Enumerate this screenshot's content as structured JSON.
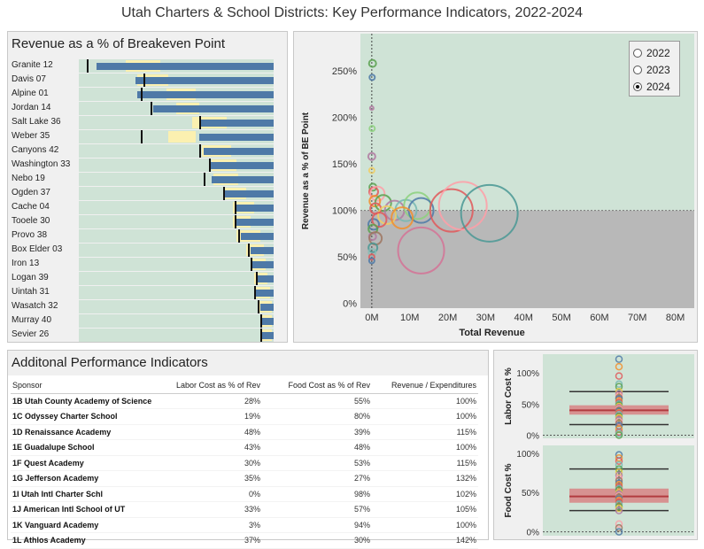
{
  "title": "Utah Charters & School Districts: Key Performance Indicators, 2022-2024",
  "revenue_panel": {
    "title": "Revenue as a % of Breakeven Point",
    "rows": [
      {
        "label": "Granite 12",
        "light_start": 0.24,
        "light_end": 0.42,
        "blue_start": 0.09,
        "blue_end": 1.0,
        "target": 0.04
      },
      {
        "label": "Davis 07",
        "light_start": 0.3,
        "light_end": 0.46,
        "blue_start": 0.29,
        "blue_end": 1.0,
        "target": 0.33
      },
      {
        "label": "Alpine 01",
        "light_start": 0.45,
        "light_end": 0.6,
        "blue_start": 0.3,
        "blue_end": 1.0,
        "target": 0.32
      },
      {
        "label": "Jordan 14",
        "light_start": 0.5,
        "light_end": 0.62,
        "blue_start": 0.38,
        "blue_end": 1.0,
        "target": 0.37
      },
      {
        "label": "Salt Lake 36",
        "light_start": 0.58,
        "light_end": 0.76,
        "blue_start": 0.62,
        "blue_end": 1.0,
        "target": 0.62
      },
      {
        "label": "Weber 35",
        "light_start": 0.46,
        "light_end": 0.6,
        "blue_start": 0.62,
        "blue_end": 1.0,
        "target": 0.32
      },
      {
        "label": "Canyons 42",
        "light_start": 0.63,
        "light_end": 0.78,
        "blue_start": 0.64,
        "blue_end": 1.0,
        "target": 0.62
      },
      {
        "label": "Washington 33",
        "light_start": 0.68,
        "light_end": 0.81,
        "blue_start": 0.67,
        "blue_end": 1.0,
        "target": 0.67
      },
      {
        "label": "Nebo 19",
        "light_start": 0.69,
        "light_end": 0.82,
        "blue_start": 0.68,
        "blue_end": 1.0,
        "target": 0.64
      },
      {
        "label": "Ogden 37",
        "light_start": 0.74,
        "light_end": 0.86,
        "blue_start": 0.74,
        "blue_end": 1.0,
        "target": 0.74
      },
      {
        "label": "Cache 04",
        "light_start": 0.79,
        "light_end": 0.9,
        "blue_start": 0.8,
        "blue_end": 1.0,
        "target": 0.8
      },
      {
        "label": "Tooele 30",
        "light_start": 0.79,
        "light_end": 0.88,
        "blue_start": 0.81,
        "blue_end": 1.0,
        "target": 0.8
      },
      {
        "label": "Provo 38",
        "light_start": 0.81,
        "light_end": 0.93,
        "blue_start": 0.83,
        "blue_end": 1.0,
        "target": 0.82
      },
      {
        "label": "Box Elder 03",
        "light_start": 0.86,
        "light_end": 0.95,
        "blue_start": 0.88,
        "blue_end": 1.0,
        "target": 0.87
      },
      {
        "label": "Iron 13",
        "light_start": 0.88,
        "light_end": 0.96,
        "blue_start": 0.89,
        "blue_end": 1.0,
        "target": 0.88
      },
      {
        "label": "Logan 39",
        "light_start": 0.9,
        "light_end": 0.97,
        "blue_start": 0.91,
        "blue_end": 1.0,
        "target": 0.91
      },
      {
        "label": "Uintah 31",
        "light_start": 0.9,
        "light_end": 0.98,
        "blue_start": 0.9,
        "blue_end": 1.0,
        "target": 0.9
      },
      {
        "label": "Wasatch 32",
        "light_start": 0.92,
        "light_end": 0.99,
        "blue_start": 0.93,
        "blue_end": 1.0,
        "target": 0.92
      },
      {
        "label": "Murray 40",
        "light_start": 0.93,
        "light_end": 0.99,
        "blue_start": 0.93,
        "blue_end": 1.0,
        "target": 0.93
      },
      {
        "label": "Sevier 26",
        "light_start": 0.93,
        "light_end": 0.99,
        "blue_start": 0.94,
        "blue_end": 1.0,
        "target": 0.93
      }
    ]
  },
  "legend": {
    "options": [
      {
        "label": "2022",
        "selected": false
      },
      {
        "label": "2023",
        "selected": false
      },
      {
        "label": "2024",
        "selected": true
      }
    ]
  },
  "chart_data": [
    {
      "type": "scatter",
      "xlabel": "Total Revenue",
      "ylabel": "Revenue as a % of BE Point",
      "xticks": [
        "0M",
        "10M",
        "20M",
        "30M",
        "40M",
        "50M",
        "60M",
        "70M",
        "80M"
      ],
      "yticks": [
        "0%",
        "50%",
        "100%",
        "150%",
        "200%",
        "250%"
      ],
      "xlim": [
        -3,
        85
      ],
      "ylim": [
        -5,
        290
      ],
      "reference_y": 100,
      "points": [
        {
          "x": 0.2,
          "y": 258,
          "size": 4,
          "color": "#59a14f"
        },
        {
          "x": 0.1,
          "y": 243,
          "size": 3,
          "color": "#4e79a7"
        },
        {
          "x": 0,
          "y": 210,
          "size": 2,
          "color": "#b07aa1"
        },
        {
          "x": 0.1,
          "y": 188,
          "size": 3,
          "color": "#8cd17d"
        },
        {
          "x": 0,
          "y": 158,
          "size": 4,
          "color": "#b07aa1"
        },
        {
          "x": 0,
          "y": 143,
          "size": 3,
          "color": "#f1ce63"
        },
        {
          "x": 0.3,
          "y": 125,
          "size": 4,
          "color": "#59a14f"
        },
        {
          "x": 0.5,
          "y": 120,
          "size": 5,
          "color": "#e15759"
        },
        {
          "x": 1.5,
          "y": 118,
          "size": 8,
          "color": "#ff9da7"
        },
        {
          "x": 0.8,
          "y": 110,
          "size": 6,
          "color": "#f28e2b"
        },
        {
          "x": 3,
          "y": 108,
          "size": 9,
          "color": "#59a14f"
        },
        {
          "x": 1,
          "y": 102,
          "size": 6,
          "color": "#e15759"
        },
        {
          "x": 6,
          "y": 100,
          "size": 11,
          "color": "#b07aa1"
        },
        {
          "x": 9,
          "y": 100,
          "size": 12,
          "color": "#76b7b2"
        },
        {
          "x": 12,
          "y": 105,
          "size": 15,
          "color": "#8cd17d"
        },
        {
          "x": 13,
          "y": 100,
          "size": 14,
          "color": "#4e79a7"
        },
        {
          "x": 21,
          "y": 100,
          "size": 24,
          "color": "#e15759"
        },
        {
          "x": 24,
          "y": 105,
          "size": 27,
          "color": "#ff9da7"
        },
        {
          "x": 31,
          "y": 97,
          "size": 32,
          "color": "#499894"
        },
        {
          "x": 4,
          "y": 95,
          "size": 10,
          "color": "#f1ce63"
        },
        {
          "x": 8,
          "y": 92,
          "size": 12,
          "color": "#f28e2b"
        },
        {
          "x": 0.5,
          "y": 85,
          "size": 6,
          "color": "#4e79a7"
        },
        {
          "x": 2,
          "y": 90,
          "size": 8,
          "color": "#e15759"
        },
        {
          "x": 0.3,
          "y": 80,
          "size": 5,
          "color": "#59a14f"
        },
        {
          "x": 0.2,
          "y": 72,
          "size": 4,
          "color": "#b07aa1"
        },
        {
          "x": 1,
          "y": 70,
          "size": 7,
          "color": "#9d7660"
        },
        {
          "x": 13,
          "y": 57,
          "size": 26,
          "color": "#d37295"
        },
        {
          "x": 0.3,
          "y": 60,
          "size": 5,
          "color": "#499894"
        },
        {
          "x": 0.1,
          "y": 55,
          "size": 4,
          "color": "#86bcb6"
        },
        {
          "x": 0,
          "y": 50,
          "size": 3,
          "color": "#e15759"
        },
        {
          "x": 0,
          "y": 46,
          "size": 3,
          "color": "#4e79a7"
        }
      ]
    },
    {
      "type": "box",
      "ylabel": "Labor Cost %",
      "yticks": [
        "0%",
        "50%",
        "100%"
      ],
      "ylim": [
        -5,
        130
      ],
      "whisker_low": 17,
      "q1": 33,
      "median": 40,
      "q3": 48,
      "whisker_high": 70,
      "points": [
        122,
        110,
        95,
        82,
        78,
        70,
        66,
        63,
        60,
        58,
        55,
        52,
        50,
        48,
        46,
        44,
        42,
        40,
        38,
        36,
        35,
        33,
        30,
        28,
        25,
        22,
        19,
        15,
        10,
        5,
        3,
        0
      ]
    },
    {
      "type": "box",
      "ylabel": "Food Cost %",
      "yticks": [
        "0%",
        "50%",
        "100%"
      ],
      "ylim": [
        -5,
        110
      ],
      "whisker_low": 27,
      "q1": 37,
      "median": 45,
      "q3": 55,
      "whisker_high": 80,
      "points": [
        98,
        94,
        90,
        85,
        80,
        76,
        72,
        68,
        65,
        62,
        60,
        57,
        55,
        53,
        50,
        48,
        46,
        44,
        42,
        40,
        38,
        35,
        32,
        30,
        27,
        10,
        5,
        0
      ]
    }
  ],
  "kpi_panel": {
    "title": "Additonal Performance Indicators",
    "headers": {
      "sponsor": "Sponsor",
      "labor": "Labor Cost as % of Rev",
      "food": "Food Cost as % of Rev",
      "rev": "Revenue / Expenditures"
    },
    "rows": [
      {
        "sponsor": "1B Utah County Academy of Science",
        "labor": "28%",
        "food": "55%",
        "rev": "100%"
      },
      {
        "sponsor": "1C Odyssey Charter School",
        "labor": "19%",
        "food": "80%",
        "rev": "100%"
      },
      {
        "sponsor": "1D Renaissance Academy",
        "labor": "48%",
        "food": "39%",
        "rev": "115%"
      },
      {
        "sponsor": "1E Guadalupe School",
        "labor": "43%",
        "food": "48%",
        "rev": "100%"
      },
      {
        "sponsor": "1F Quest Academy",
        "labor": "30%",
        "food": "53%",
        "rev": "115%"
      },
      {
        "sponsor": "1G Jefferson Academy",
        "labor": "35%",
        "food": "27%",
        "rev": "132%"
      },
      {
        "sponsor": "1I Utah Intl Charter Schl",
        "labor": "0%",
        "food": "98%",
        "rev": "102%"
      },
      {
        "sponsor": "1J American Intl School of UT",
        "labor": "33%",
        "food": "57%",
        "rev": "105%"
      },
      {
        "sponsor": "1K Vanguard Academy",
        "labor": "3%",
        "food": "94%",
        "rev": "100%"
      },
      {
        "sponsor": "1L Athlos Academy",
        "labor": "37%",
        "food": "30%",
        "rev": "142%"
      }
    ]
  },
  "colors": {
    "green_bg": "#cfe3d6",
    "grey_bg": "#b8b8b8",
    "blue": "#4e79a7",
    "yellow": "#fbf0b0",
    "box_red": "#d9777a"
  }
}
